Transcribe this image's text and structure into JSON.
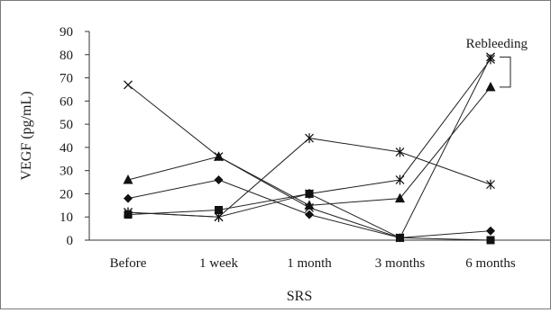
{
  "chart_data": {
    "type": "line",
    "title": "",
    "xlabel": "SRS",
    "ylabel": "VEGF (pg/mL)",
    "categories": [
      "Before",
      "1 week",
      "1 month",
      "3 months",
      "6 months"
    ],
    "ylim": [
      0,
      90
    ],
    "yticks": [
      0,
      10,
      20,
      30,
      40,
      50,
      60,
      70,
      80,
      90
    ],
    "grid": false,
    "legend": "none",
    "annotation": "Rebleeding",
    "series": [
      {
        "marker": "x",
        "values": [
          67,
          36,
          14,
          1,
          79
        ],
        "color": "#222222"
      },
      {
        "marker": "triangle",
        "values": [
          26,
          36,
          15,
          18,
          66
        ],
        "color": "#222222"
      },
      {
        "marker": "diamond",
        "values": [
          18,
          26,
          11,
          1,
          4
        ],
        "color": "#222222"
      },
      {
        "marker": "square",
        "values": [
          11,
          13,
          20,
          1,
          0
        ],
        "color": "#222222"
      },
      {
        "marker": "asterisk",
        "values": [
          12,
          10,
          44,
          38,
          24
        ],
        "color": "#222222"
      },
      {
        "marker": "asterisk",
        "values": [
          12,
          10,
          20,
          26,
          78
        ],
        "color": "#222222"
      }
    ]
  }
}
